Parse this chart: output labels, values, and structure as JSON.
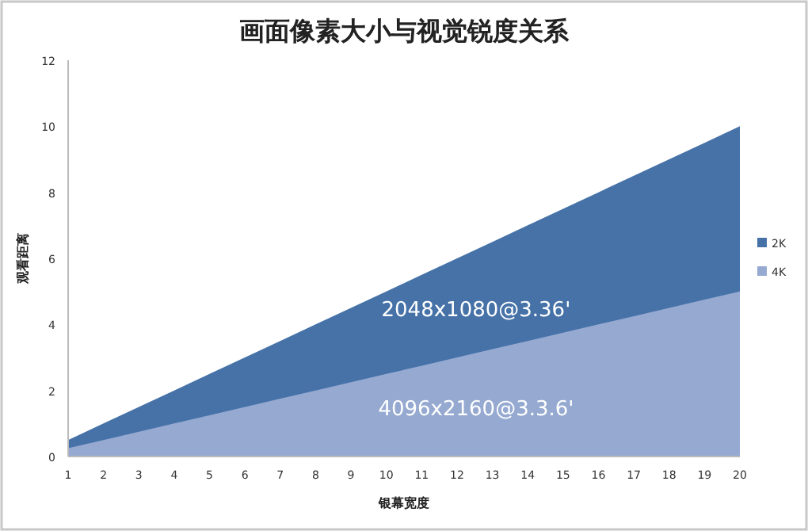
{
  "chart_data": {
    "type": "area",
    "title": "画面像素大小与视觉锐度关系",
    "xlabel": "银幕宽度",
    "ylabel": "观看距离",
    "categories": [
      "1",
      "2",
      "3",
      "4",
      "5",
      "6",
      "7",
      "8",
      "9",
      "10",
      "11",
      "12",
      "13",
      "14",
      "15",
      "16",
      "17",
      "18",
      "19",
      "20"
    ],
    "series": [
      {
        "name": "2K",
        "color": "#4672a8",
        "values": [
          0.5,
          1,
          1.5,
          2,
          2.5,
          3,
          3.5,
          4,
          4.5,
          5,
          5.5,
          6,
          6.5,
          7,
          7.5,
          8,
          8.5,
          9,
          9.5,
          10
        ]
      },
      {
        "name": "4K",
        "color": "#95a9d1",
        "values": [
          0.25,
          0.5,
          0.75,
          1,
          1.25,
          1.5,
          1.75,
          2,
          2.25,
          2.5,
          2.75,
          3,
          3.25,
          3.5,
          3.75,
          4,
          4.25,
          4.5,
          4.75,
          5
        ]
      }
    ],
    "ylim": [
      0,
      12
    ],
    "yticks": [
      0,
      2,
      4,
      6,
      8,
      10,
      12
    ],
    "grid": false,
    "legend": "right",
    "annotations": [
      "2048x1080@3.36'",
      "4096x2160@3.3.6'"
    ]
  }
}
